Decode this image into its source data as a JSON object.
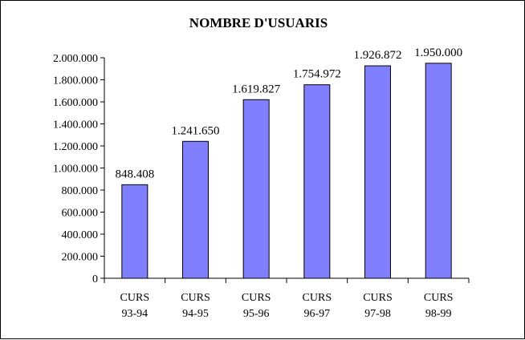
{
  "chart_data": {
    "type": "bar",
    "title": "NOMBRE D'USUARIS",
    "xlabel": "",
    "ylabel": "",
    "ylim": [
      0,
      2000000
    ],
    "yticks": [
      0,
      200000,
      400000,
      600000,
      800000,
      1000000,
      1200000,
      1400000,
      1600000,
      1800000,
      2000000
    ],
    "ytick_labels": [
      "0",
      "200.000",
      "400.000",
      "600.000",
      "800.000",
      "1.000.000",
      "1.200.000",
      "1.400.000",
      "1.600.000",
      "1.800.000",
      "2.000.000"
    ],
    "categories": [
      [
        "CURS",
        "93-94"
      ],
      [
        "CURS",
        "94-95"
      ],
      [
        "CURS",
        "95-96"
      ],
      [
        "CURS",
        "96-97"
      ],
      [
        "CURS",
        "97-98"
      ],
      [
        "CURS",
        "98-99"
      ]
    ],
    "values": [
      848408,
      1241650,
      1619827,
      1754972,
      1926872,
      1950000
    ],
    "data_labels": [
      "848.408",
      "1.241.650",
      "1.619.827",
      "1.754.972",
      "1.926.872",
      "1.950.000"
    ],
    "grid": false,
    "legend": "none",
    "colors": {
      "bar": "#8080ff",
      "bar_stroke": "#000000",
      "axis": "#000000",
      "background": "#ffffff"
    }
  }
}
